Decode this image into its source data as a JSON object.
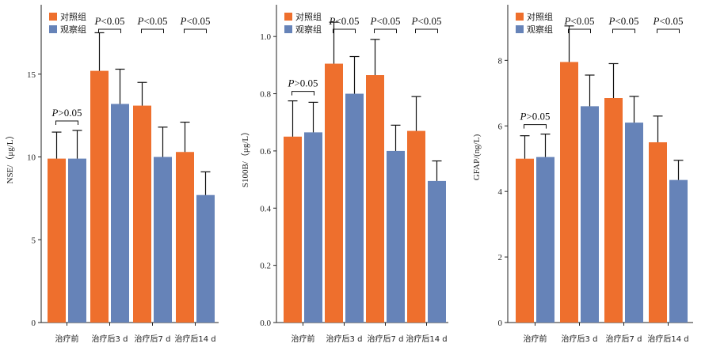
{
  "colors": {
    "control": "#EE6F2D",
    "observation": "#6683B8",
    "axis": "#222222",
    "bracket": "#111111"
  },
  "legend": {
    "control": "对照组",
    "observation": "观察组"
  },
  "chart_data": [
    {
      "type": "bar",
      "ylabel": "NSE/（μg/L）",
      "ylim": [
        0,
        19
      ],
      "yticks": [
        0,
        5,
        10,
        15
      ],
      "categories": [
        "治疗前",
        "治疗后3 d",
        "治疗后7 d",
        "治疗后14 d"
      ],
      "series": [
        {
          "name": "对照组",
          "values": [
            9.9,
            15.2,
            13.1,
            10.3
          ],
          "errors": [
            1.6,
            2.3,
            1.4,
            1.8
          ]
        },
        {
          "name": "观察组",
          "values": [
            9.9,
            13.2,
            10.0,
            7.7
          ],
          "errors": [
            1.7,
            2.1,
            1.8,
            1.4
          ]
        }
      ],
      "annotations": [
        "P>0.05",
        "P<0.05",
        "P<0.05",
        "P<0.05"
      ]
    },
    {
      "type": "bar",
      "ylabel": "S100B/（μg/L）",
      "ylim": [
        0,
        1.1
      ],
      "yticks": [
        0,
        0.2,
        0.4,
        0.6,
        0.8,
        1.0
      ],
      "categories": [
        "治疗前",
        "治疗后3 d",
        "治疗后7 d",
        "治疗后14 d"
      ],
      "series": [
        {
          "name": "对照组",
          "values": [
            0.65,
            0.905,
            0.865,
            0.67
          ],
          "errors": [
            0.125,
            0.145,
            0.125,
            0.12
          ]
        },
        {
          "name": "观察组",
          "values": [
            0.665,
            0.8,
            0.6,
            0.495
          ],
          "errors": [
            0.105,
            0.13,
            0.09,
            0.07
          ]
        }
      ],
      "annotations": [
        "P>0.05",
        "P<0.05",
        "P<0.05",
        "P<0.05"
      ]
    },
    {
      "type": "bar",
      "ylabel": "GFAP/(ng/L)",
      "ylim": [
        0,
        9.6
      ],
      "yticks": [
        0,
        2,
        4,
        6,
        8
      ],
      "categories": [
        "治疗前",
        "治疗后3 d",
        "治疗后7 d",
        "治疗后14 d"
      ],
      "series": [
        {
          "name": "对照组",
          "values": [
            5.0,
            7.95,
            6.85,
            5.5
          ],
          "errors": [
            0.7,
            1.1,
            1.05,
            0.8
          ]
        },
        {
          "name": "观察组",
          "values": [
            5.05,
            6.6,
            6.1,
            4.35
          ],
          "errors": [
            0.7,
            0.95,
            0.8,
            0.6
          ]
        }
      ],
      "annotations": [
        "P>0.05",
        "P<0.05",
        "P<0.05",
        "P<0.05"
      ]
    }
  ]
}
